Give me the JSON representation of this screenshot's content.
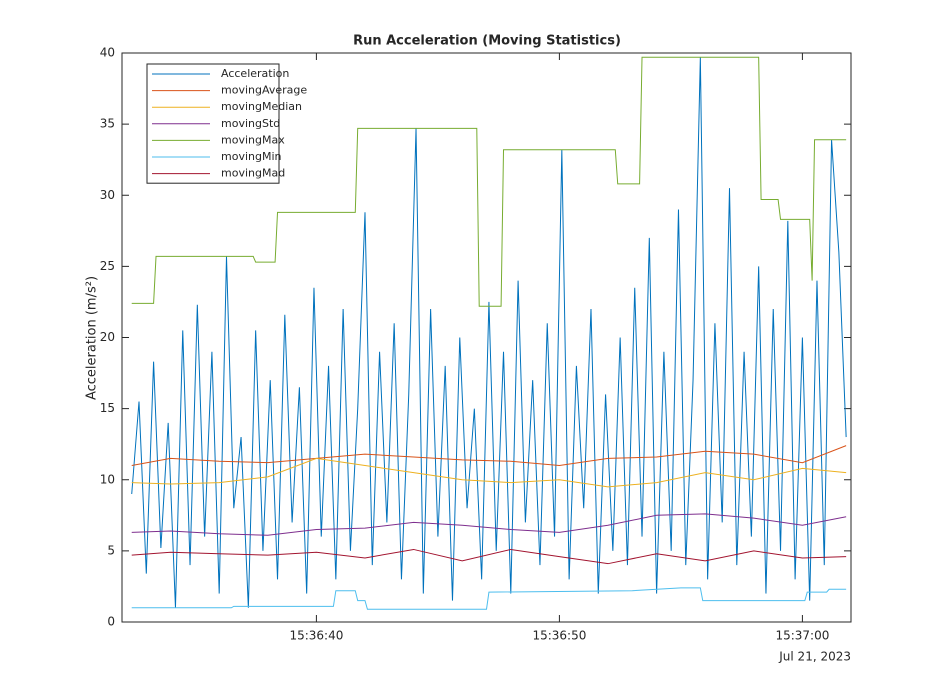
{
  "chart_data": {
    "type": "line",
    "title": "Run Acceleration (Moving Statistics)",
    "y_label": "Acceleration (m/s²)",
    "x_date_label": "Jul 21, 2023",
    "xlim": [
      "15:36:32",
      "15:37:02"
    ],
    "xticks": [
      "15:36:40",
      "15:36:50",
      "15:37:00"
    ],
    "ylim": [
      0,
      40
    ],
    "yticks": [
      0,
      5,
      10,
      15,
      20,
      25,
      30,
      35,
      40
    ],
    "legend": "upper left",
    "series": [
      {
        "name": "Acceleration",
        "color": "#0072BD",
        "x": [
          "15:36:32.4",
          "15:36:32.7",
          "15:36:33.0",
          "15:36:33.3",
          "15:36:33.6",
          "15:36:33.9",
          "15:36:34.2",
          "15:36:34.5",
          "15:36:34.8",
          "15:36:35.1",
          "15:36:35.4",
          "15:36:35.7",
          "15:36:36.0",
          "15:36:36.3",
          "15:36:36.6",
          "15:36:36.9",
          "15:36:37.2",
          "15:36:37.5",
          "15:36:37.8",
          "15:36:38.1",
          "15:36:38.4",
          "15:36:38.7",
          "15:36:39.0",
          "15:36:39.3",
          "15:36:39.6",
          "15:36:39.9",
          "15:36:40.2",
          "15:36:40.5",
          "15:36:40.8",
          "15:36:41.1",
          "15:36:41.4",
          "15:36:41.7",
          "15:36:42.0",
          "15:36:42.3",
          "15:36:42.6",
          "15:36:42.9",
          "15:36:43.2",
          "15:36:43.5",
          "15:36:43.8",
          "15:36:44.1",
          "15:36:44.4",
          "15:36:44.7",
          "15:36:45.0",
          "15:36:45.3",
          "15:36:45.6",
          "15:36:45.9",
          "15:36:46.2",
          "15:36:46.5",
          "15:36:46.8",
          "15:36:47.1",
          "15:36:47.4",
          "15:36:47.7",
          "15:36:48.0",
          "15:36:48.3",
          "15:36:48.6",
          "15:36:48.9",
          "15:36:49.2",
          "15:36:49.5",
          "15:36:49.8",
          "15:36:50.1",
          "15:36:50.4",
          "15:36:50.7",
          "15:36:51.0",
          "15:36:51.3",
          "15:36:51.6",
          "15:36:51.9",
          "15:36:52.2",
          "15:36:52.5",
          "15:36:52.8",
          "15:36:53.1",
          "15:36:53.4",
          "15:36:53.7",
          "15:36:54.0",
          "15:36:54.3",
          "15:36:54.6",
          "15:36:54.9",
          "15:36:55.2",
          "15:36:55.5",
          "15:36:55.8",
          "15:36:56.1",
          "15:36:56.4",
          "15:36:56.7",
          "15:36:57.0",
          "15:36:57.3",
          "15:36:57.6",
          "15:36:57.9",
          "15:36:58.2",
          "15:36:58.5",
          "15:36:58.8",
          "15:36:59.1",
          "15:36:59.4",
          "15:36:59.7",
          "15:37:00.0",
          "15:37:00.3",
          "15:37:00.6",
          "15:37:00.9",
          "15:37:01.2",
          "15:37:01.5",
          "15:37:01.8"
        ],
        "values": [
          9,
          15.5,
          3.4,
          18.3,
          5.2,
          14,
          1,
          20.5,
          4,
          22.3,
          6,
          19,
          2,
          25.7,
          8,
          13,
          1,
          20.5,
          5,
          17,
          3,
          21.6,
          7,
          16.5,
          2,
          23.5,
          6,
          18,
          3,
          22,
          5,
          15,
          28.8,
          4,
          19,
          7,
          21,
          3,
          16,
          34.7,
          2,
          22,
          6,
          18,
          1.5,
          20,
          8,
          15,
          3,
          22.5,
          5,
          19,
          2,
          24,
          7,
          17,
          4,
          21,
          6,
          33.2,
          3,
          18,
          8,
          22,
          2,
          16,
          5,
          20,
          4,
          23.5,
          6,
          27,
          2,
          19,
          5,
          29,
          4,
          17,
          39.7,
          3,
          21,
          7,
          30.5,
          4,
          19,
          6,
          25,
          2,
          22,
          5,
          28.2,
          3,
          20,
          1.5,
          24,
          4,
          33.9,
          26,
          13
        ]
      },
      {
        "name": "movingAverage",
        "color": "#D95319",
        "x": [
          "15:36:32.4",
          "15:36:34",
          "15:36:36",
          "15:36:38",
          "15:36:40",
          "15:36:42",
          "15:36:44",
          "15:36:46",
          "15:36:48",
          "15:36:50",
          "15:36:52",
          "15:36:54",
          "15:36:56",
          "15:36:58",
          "15:37:00",
          "15:37:01.8"
        ],
        "values": [
          11,
          11.5,
          11.3,
          11.2,
          11.5,
          11.8,
          11.6,
          11.4,
          11.3,
          11,
          11.5,
          11.6,
          12,
          11.8,
          11.2,
          12.4
        ]
      },
      {
        "name": "movingMedian",
        "color": "#EDB120",
        "x": [
          "15:36:32.4",
          "15:36:34",
          "15:36:36",
          "15:36:38",
          "15:36:40",
          "15:36:42",
          "15:36:44",
          "15:36:46",
          "15:36:48",
          "15:36:50",
          "15:36:52",
          "15:36:54",
          "15:36:56",
          "15:36:58",
          "15:37:00",
          "15:37:01.8"
        ],
        "values": [
          9.8,
          9.7,
          9.8,
          10.2,
          11.5,
          11,
          10.5,
          10,
          9.8,
          10,
          9.5,
          9.8,
          10.5,
          10,
          10.8,
          10.5
        ]
      },
      {
        "name": "movingStd",
        "color": "#7E2F8E",
        "x": [
          "15:36:32.4",
          "15:36:34",
          "15:36:36",
          "15:36:38",
          "15:36:40",
          "15:36:42",
          "15:36:44",
          "15:36:46",
          "15:36:48",
          "15:36:50",
          "15:36:52",
          "15:36:54",
          "15:36:56",
          "15:36:58",
          "15:37:00",
          "15:37:01.8"
        ],
        "values": [
          6.3,
          6.4,
          6.2,
          6.1,
          6.5,
          6.6,
          7,
          6.8,
          6.5,
          6.3,
          6.8,
          7.5,
          7.6,
          7.3,
          6.8,
          7.4
        ]
      },
      {
        "name": "movingMax",
        "color": "#77AC30",
        "x": [
          "15:36:32.4",
          "15:36:33.3",
          "15:36:33.4",
          "15:36:37.4",
          "15:36:37.5",
          "15:36:38.3",
          "15:36:38.4",
          "15:36:41.6",
          "15:36:41.7",
          "15:36:46.6",
          "15:36:46.7",
          "15:36:47.6",
          "15:36:47.7",
          "15:36:52.3",
          "15:36:52.4",
          "15:36:53.3",
          "15:36:53.4",
          "15:36:58.2",
          "15:36:58.3",
          "15:36:59.0",
          "15:36:59.1",
          "15:37:00.3",
          "15:37:00.4",
          "15:37:00.5",
          "15:37:01.8"
        ],
        "values": [
          22.4,
          22.4,
          25.7,
          25.7,
          25.3,
          25.3,
          28.8,
          28.8,
          34.7,
          34.7,
          22.2,
          22.2,
          33.2,
          33.2,
          30.8,
          30.8,
          39.7,
          39.7,
          29.7,
          29.7,
          28.3,
          28.3,
          24,
          33.9,
          33.9
        ]
      },
      {
        "name": "movingMin",
        "color": "#4DBEEE",
        "x": [
          "15:36:32.4",
          "15:36:36.5",
          "15:36:36.6",
          "15:36:40.7",
          "15:36:40.8",
          "15:36:41.6",
          "15:36:41.7",
          "15:36:42.0",
          "15:36:42.1",
          "15:36:47.0",
          "15:36:47.1",
          "15:36:53.0",
          "15:36:55.0",
          "15:36:55.8",
          "15:36:55.9",
          "15:37:00.1",
          "15:37:00.2",
          "15:37:01.0",
          "15:37:01.1",
          "15:37:01.8"
        ],
        "values": [
          1,
          1,
          1.1,
          1.1,
          2.2,
          2.2,
          1.5,
          1.5,
          0.9,
          0.9,
          2.1,
          2.2,
          2.4,
          2.4,
          1.5,
          1.5,
          2.1,
          2.1,
          2.3,
          2.3
        ]
      },
      {
        "name": "movingMad",
        "color": "#A2142F",
        "x": [
          "15:36:32.4",
          "15:36:34",
          "15:36:36",
          "15:36:38",
          "15:36:40",
          "15:36:42",
          "15:36:44",
          "15:36:46",
          "15:36:48",
          "15:36:50",
          "15:36:52",
          "15:36:54",
          "15:36:56",
          "15:36:58",
          "15:37:00",
          "15:37:01.8"
        ],
        "values": [
          4.7,
          4.9,
          4.8,
          4.7,
          4.9,
          4.5,
          5.1,
          4.3,
          5.1,
          4.6,
          4.1,
          4.8,
          4.3,
          5,
          4.5,
          4.6
        ]
      }
    ]
  }
}
